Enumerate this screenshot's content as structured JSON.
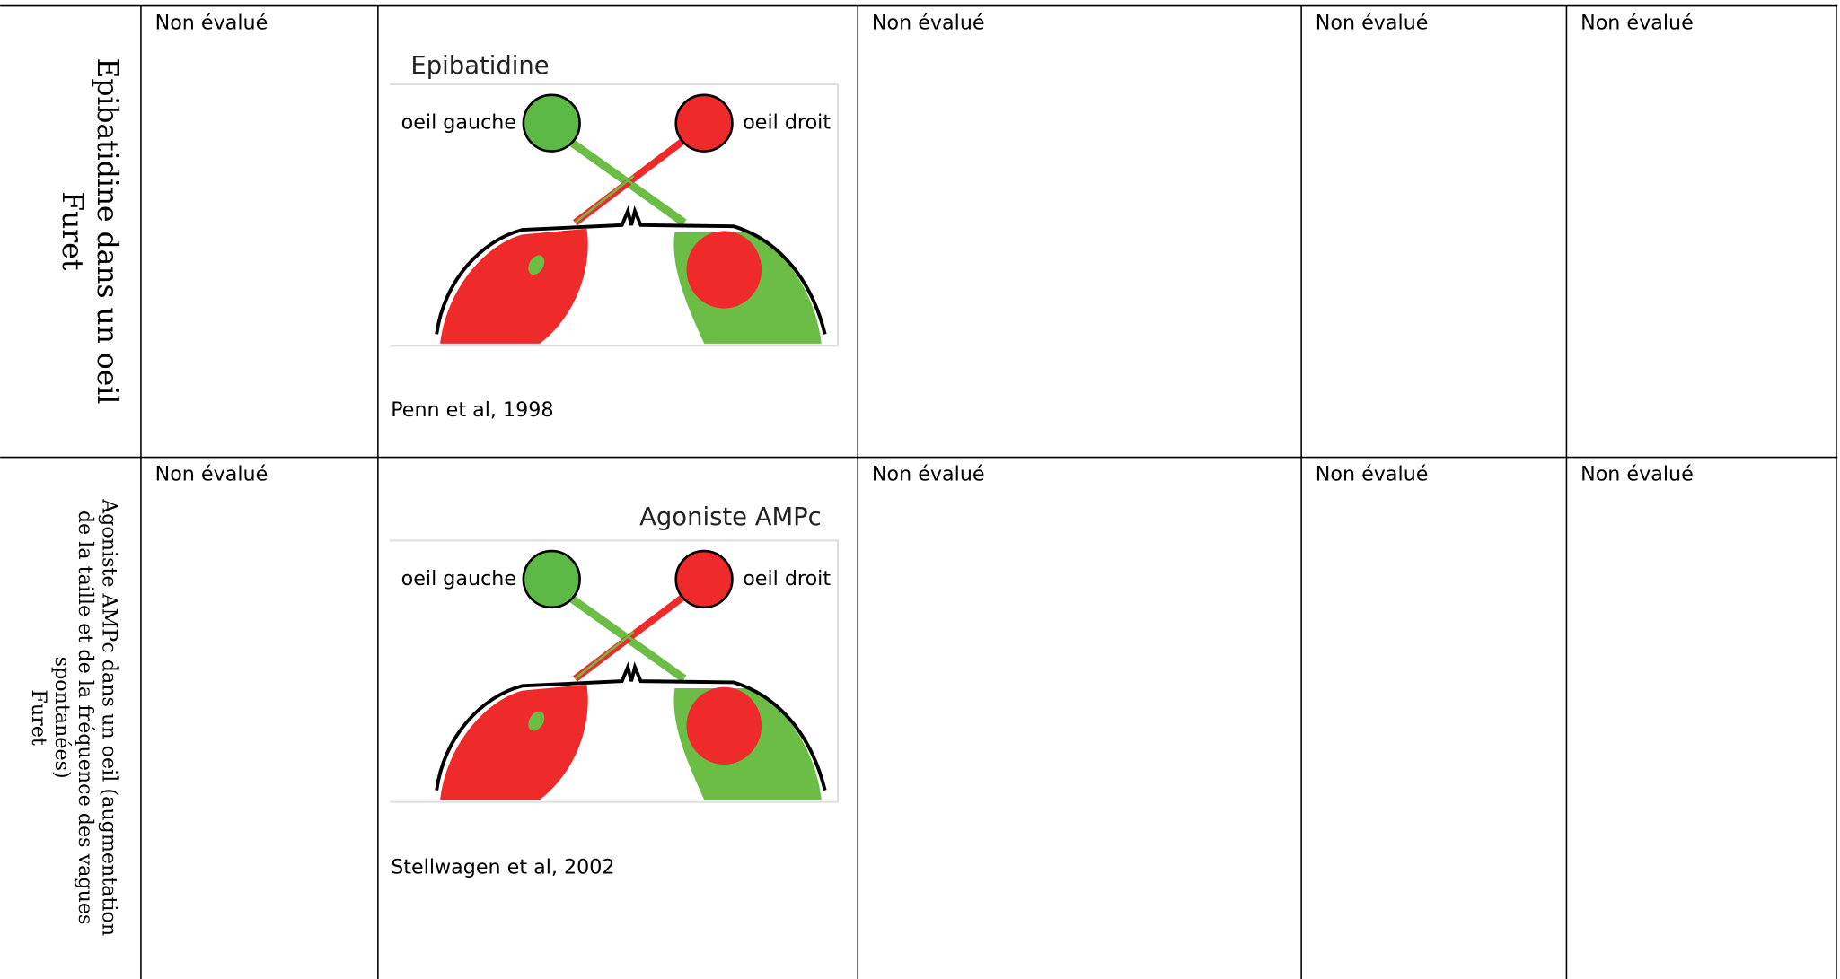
{
  "table": {
    "rows": [
      {
        "label": [
          "Epibatidine dans un oeil",
          "Furet"
        ],
        "col1": "Non évalué",
        "figure": {
          "title": "Epibatidine",
          "left_eye": "oeil gauche",
          "right_eye": "oeil droit",
          "citation": "Penn et al, 1998"
        },
        "others": [
          "Non évalué",
          "Non évalué",
          "Non évalué"
        ]
      },
      {
        "label": [
          "Agoniste AMPc dans un oeil (augmentation",
          "de la taille et de la fréquence des vagues",
          "spontanées)",
          "Furet"
        ],
        "col1": "Non évalué",
        "figure": {
          "title": "Agoniste AMPc",
          "left_eye": "oeil gauche",
          "right_eye": "oeil droit",
          "citation": "Stellwagen et al, 2002"
        },
        "others": [
          "Non évalué",
          "Non évalué",
          "Non évalué"
        ]
      }
    ]
  }
}
